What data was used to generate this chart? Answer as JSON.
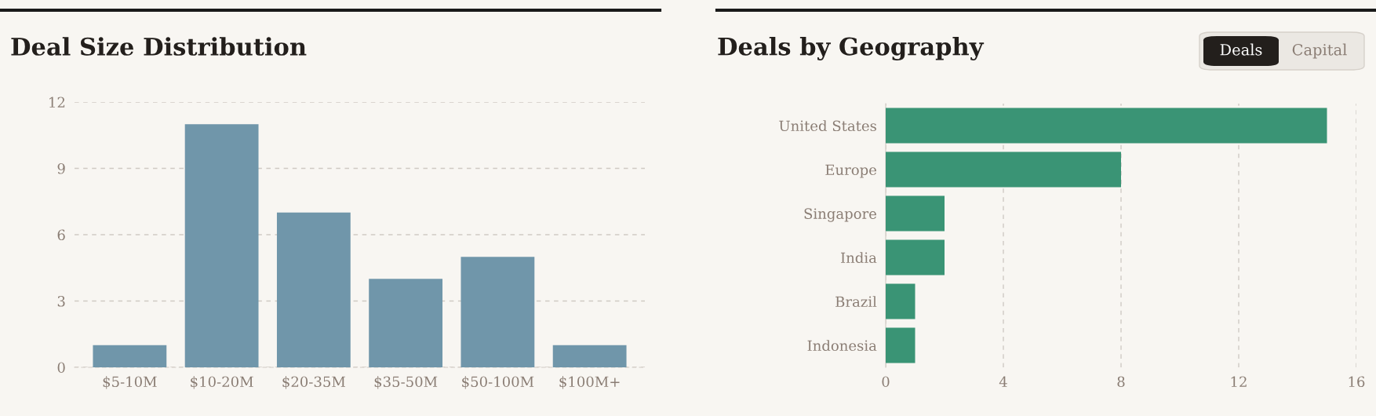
{
  "chart_data": [
    {
      "type": "bar",
      "title": "Deal Size Distribution",
      "categories": [
        "$5-10M",
        "$10-20M",
        "$20-35M",
        "$35-50M",
        "$50-100M",
        "$100M+"
      ],
      "values": [
        1,
        11,
        7,
        4,
        5,
        1
      ],
      "color": "#7096aa",
      "ylim": [
        0,
        12
      ],
      "yticks": [
        0,
        3,
        6,
        9,
        12
      ],
      "grid": "y",
      "line_style": "dashed"
    },
    {
      "type": "bar",
      "orientation": "horizontal",
      "title": "Deals by Geography",
      "annotations": [
        "Deals",
        "Capital"
      ],
      "categories": [
        "United States",
        "Europe",
        "Singapore",
        "India",
        "Brazil",
        "Indonesia"
      ],
      "values": [
        15,
        8,
        2,
        2,
        1,
        1
      ],
      "color": "#3a9475",
      "xlim": [
        0,
        16
      ],
      "xticks": [
        0,
        4,
        8,
        12,
        16
      ],
      "grid": "x",
      "line_style": "dashed"
    }
  ]
}
